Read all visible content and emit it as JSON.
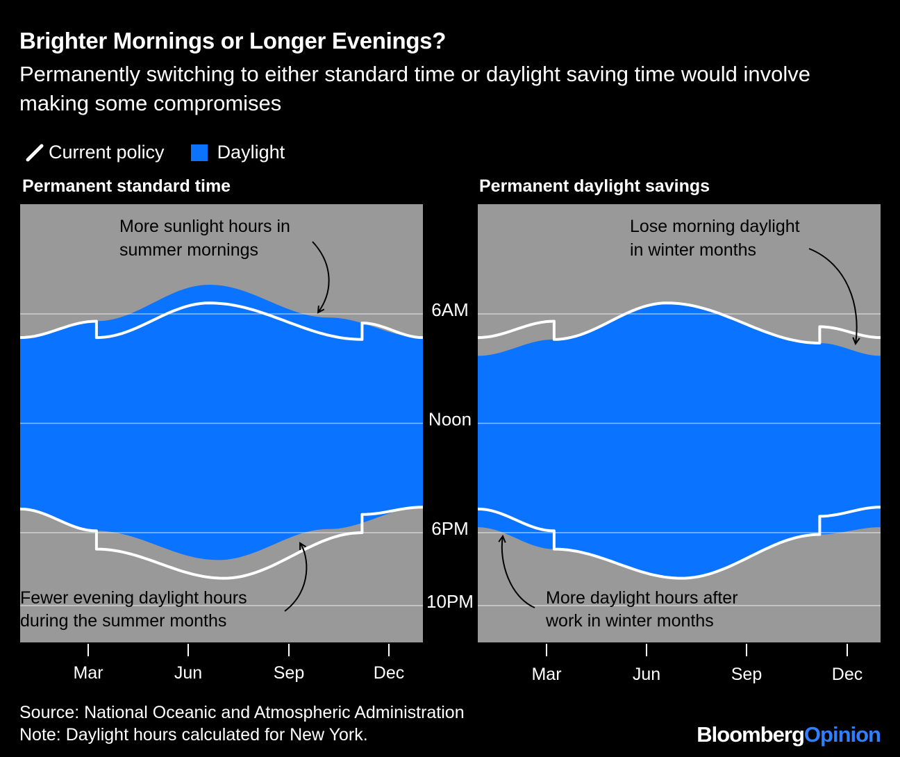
{
  "title": "Brighter Mornings or Longer Evenings?",
  "subtitle": "Permanently switching to either standard time or daylight saving time would involve making some compromises",
  "legend": {
    "current_policy": "Current policy",
    "daylight": "Daylight"
  },
  "footer": {
    "source": "Source: National Oceanic and Atmospheric Administration",
    "note": "Note: Daylight hours calculated for New York."
  },
  "brand": {
    "part1": "Bloomberg",
    "part2": "Opinion"
  },
  "colors": {
    "daylight": "#0a73ff",
    "background": "#999999",
    "current_policy": "#ffffff",
    "page": "#000000"
  },
  "chart_data": [
    {
      "type": "area",
      "title": "Permanent standard time",
      "x_unit": "day of year",
      "y_unit": "clock hour",
      "y_ticks": [
        {
          "value": 6,
          "label": "6AM"
        },
        {
          "value": 12,
          "label": "Noon"
        },
        {
          "value": 18,
          "label": "6PM"
        },
        {
          "value": 22,
          "label": "10PM"
        }
      ],
      "x_ticks": [
        {
          "value": 60,
          "label": "Mar"
        },
        {
          "value": 152,
          "label": "Jun"
        },
        {
          "value": 244,
          "label": "Sep"
        },
        {
          "value": 335,
          "label": "Dec"
        }
      ],
      "series": [
        {
          "name": "Daylight",
          "sunrise": [
            [
              1,
              7.3
            ],
            [
              70,
              6.4
            ],
            [
              172,
              4.4
            ],
            [
              280,
              6.2
            ],
            [
              365,
              7.3
            ]
          ],
          "sunset": [
            [
              1,
              16.7
            ],
            [
              70,
              17.9
            ],
            [
              180,
              19.5
            ],
            [
              280,
              17.8
            ],
            [
              365,
              16.6
            ]
          ]
        },
        {
          "name": "Current policy",
          "sunrise": [
            [
              1,
              7.3
            ],
            [
              70,
              6.4
            ],
            [
              70,
              7.3
            ],
            [
              172,
              5.4
            ],
            [
              310,
              7.4
            ],
            [
              310,
              6.5
            ],
            [
              365,
              7.3
            ]
          ],
          "sunset": [
            [
              1,
              16.7
            ],
            [
              70,
              17.9
            ],
            [
              70,
              18.9
            ],
            [
              185,
              20.5
            ],
            [
              310,
              18.0
            ],
            [
              310,
              17.0
            ],
            [
              365,
              16.6
            ]
          ]
        }
      ],
      "annotations": [
        "More sunlight hours in summer mornings",
        "Fewer evening daylight hours during the summer months"
      ]
    },
    {
      "type": "area",
      "title": "Permanent daylight savings",
      "x_unit": "day of year",
      "y_unit": "clock hour",
      "y_ticks": [
        {
          "value": 6,
          "label": "6AM"
        },
        {
          "value": 12,
          "label": "Noon"
        },
        {
          "value": 18,
          "label": "6PM"
        },
        {
          "value": 22,
          "label": "10PM"
        }
      ],
      "x_ticks": [
        {
          "value": 60,
          "label": "Mar"
        },
        {
          "value": 152,
          "label": "Jun"
        },
        {
          "value": 244,
          "label": "Sep"
        },
        {
          "value": 335,
          "label": "Dec"
        }
      ],
      "series": [
        {
          "name": "Daylight",
          "sunrise": [
            [
              1,
              8.3
            ],
            [
              70,
              7.4
            ],
            [
              172,
              5.4
            ],
            [
              310,
              7.6
            ],
            [
              365,
              8.3
            ]
          ],
          "sunset": [
            [
              1,
              17.7
            ],
            [
              70,
              18.9
            ],
            [
              185,
              20.5
            ],
            [
              310,
              18.1
            ],
            [
              365,
              17.7
            ]
          ]
        },
        {
          "name": "Current policy",
          "sunrise": [
            [
              1,
              7.3
            ],
            [
              70,
              6.4
            ],
            [
              70,
              7.4
            ],
            [
              172,
              5.4
            ],
            [
              310,
              7.6
            ],
            [
              310,
              6.7
            ],
            [
              365,
              7.3
            ]
          ],
          "sunset": [
            [
              1,
              16.7
            ],
            [
              70,
              17.9
            ],
            [
              70,
              18.9
            ],
            [
              185,
              20.5
            ],
            [
              310,
              18.1
            ],
            [
              310,
              17.1
            ],
            [
              365,
              16.6
            ]
          ]
        }
      ],
      "annotations": [
        "Lose morning daylight in winter months",
        "More daylight hours after work in winter months"
      ]
    }
  ]
}
